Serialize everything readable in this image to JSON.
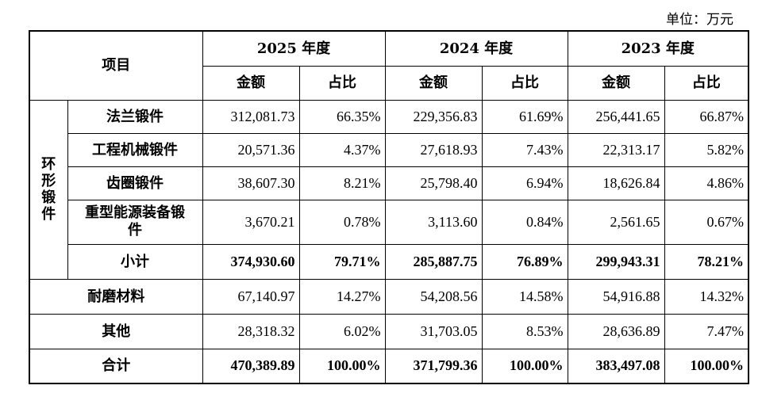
{
  "unit_label": "单位：万元",
  "header": {
    "item": "项目",
    "years": [
      "2025 年度",
      "2024 年度",
      "2023 年度"
    ],
    "amount": "金额",
    "ratio": "占比"
  },
  "group_label": "环\n形\n锻\n件",
  "rows": [
    {
      "label": "法兰锻件",
      "v": [
        "312,081.73",
        "66.35%",
        "229,356.83",
        "61.69%",
        "256,441.65",
        "66.87%"
      ]
    },
    {
      "label": "工程机械锻件",
      "v": [
        "20,571.36",
        "4.37%",
        "27,618.93",
        "7.43%",
        "22,313.17",
        "5.82%"
      ]
    },
    {
      "label": "齿圈锻件",
      "v": [
        "38,607.30",
        "8.21%",
        "25,798.40",
        "6.94%",
        "18,626.84",
        "4.86%"
      ]
    },
    {
      "label": "重型能源装备锻件",
      "v": [
        "3,670.21",
        "0.78%",
        "3,113.60",
        "0.84%",
        "2,561.65",
        "0.67%"
      ]
    },
    {
      "label": "小计",
      "v": [
        "374,930.60",
        "79.71%",
        "285,887.75",
        "76.89%",
        "299,943.31",
        "78.21%"
      ]
    },
    {
      "label": "耐磨材料",
      "v": [
        "67,140.97",
        "14.27%",
        "54,208.56",
        "14.58%",
        "54,916.88",
        "14.32%"
      ]
    },
    {
      "label": "其他",
      "v": [
        "28,318.32",
        "6.02%",
        "31,703.05",
        "8.53%",
        "28,636.89",
        "7.47%"
      ]
    },
    {
      "label": "合计",
      "v": [
        "470,389.89",
        "100.00%",
        "371,799.36",
        "100.00%",
        "383,497.08",
        "100.00%"
      ]
    }
  ]
}
